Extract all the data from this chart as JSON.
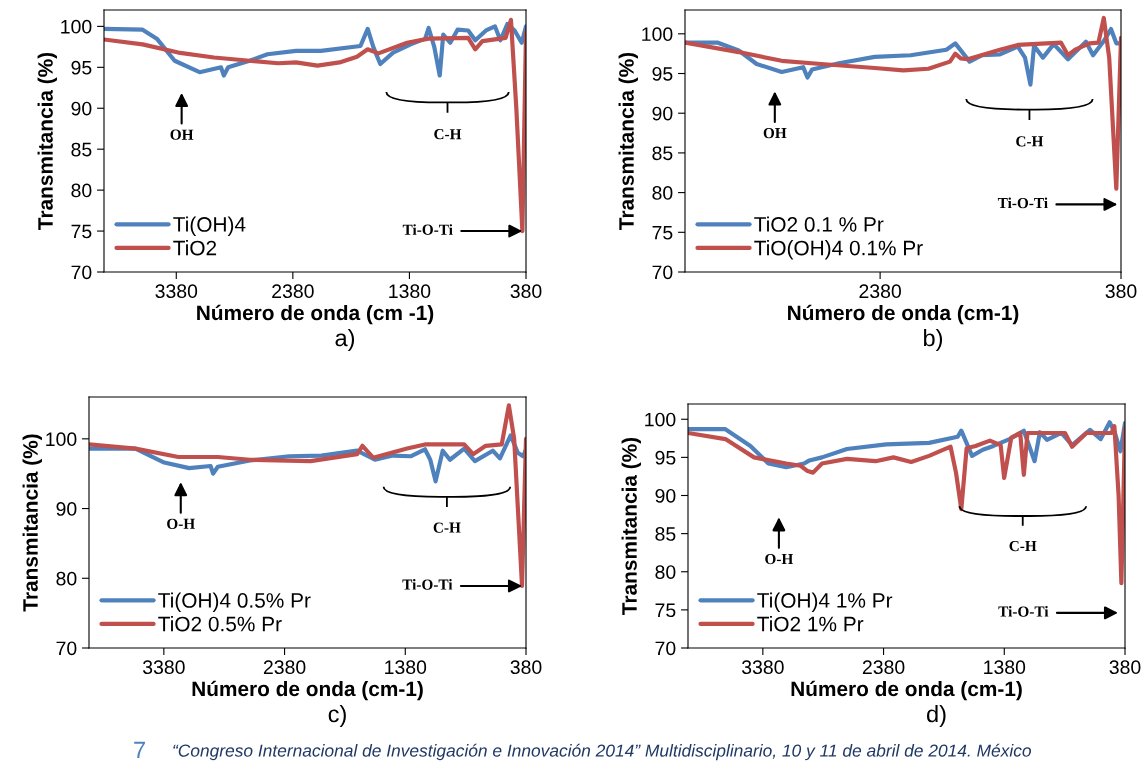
{
  "chart_data": [
    {
      "type": "line",
      "xlabel": "Número de onda (cm -1)",
      "ylabel": "Transmitancia (%)",
      "xlim": [
        4000,
        380
      ],
      "xticks": [
        3380,
        2380,
        1380,
        380
      ],
      "ylim": [
        70,
        102
      ],
      "yticks": [
        70,
        75,
        80,
        85,
        90,
        95,
        100
      ],
      "legend": "bottom left",
      "series": [
        {
          "name": "Ti(OH)4",
          "color": "#4f81bd",
          "x": [
            4000,
            3669,
            3547,
            3394,
            3180,
            2996,
            2972,
            2935,
            2751,
            2598,
            2353,
            2139,
            1800,
            1738,
            1690,
            1630,
            1520,
            1370,
            1245,
            1215,
            1167,
            1120,
            1090,
            1030,
            967,
            876,
            815,
            723,
            646,
            600,
            539,
            478,
            417,
            380
          ],
          "values": [
            99.7,
            99.6,
            98.5,
            95.8,
            94.4,
            95.0,
            94.0,
            95.0,
            95.8,
            96.6,
            97.0,
            97.0,
            97.6,
            99.7,
            97.5,
            95.4,
            96.8,
            97.8,
            98.5,
            99.8,
            97.5,
            94.0,
            99.0,
            98.0,
            99.6,
            99.5,
            98.3,
            99.5,
            100.0,
            98.3,
            100.3,
            99.5,
            98.0,
            100.0
          ]
        },
        {
          "name": "TiO2",
          "color": "#c0504d",
          "x": [
            4000,
            3669,
            3363,
            3057,
            2751,
            2506,
            2353,
            2169,
            1980,
            1830,
            1738,
            1646,
            1400,
            1215,
            876,
            815,
            754,
            555,
            509,
            463,
            411,
            380
          ],
          "values": [
            98.4,
            97.8,
            96.8,
            96.2,
            95.8,
            95.5,
            95.6,
            95.2,
            95.6,
            96.3,
            97.2,
            96.7,
            98.0,
            98.5,
            98.6,
            97.2,
            98.2,
            98.6,
            100.8,
            90,
            75.0,
            99.3
          ]
        }
      ],
      "annotations": [
        "OH",
        "C-H",
        {
          "text": "Ti-O-Ti",
          "x": 411,
          "y": 75.0
        },
        "a)"
      ]
    },
    {
      "type": "line",
      "xlabel": "Número de onda (cm-1)",
      "ylabel": "Transmitancia (%)",
      "xlim": [
        4000,
        380
      ],
      "xticks": [
        2380,
        380
      ],
      "ylim": [
        70,
        103
      ],
      "yticks": [
        70,
        75,
        80,
        85,
        90,
        95,
        100
      ],
      "legend": "bottom left",
      "series": [
        {
          "name": "TiO2 0.1 % Pr",
          "color": "#4f81bd",
          "x": [
            4000,
            3732,
            3554,
            3405,
            3197,
            3019,
            2983,
            2945,
            2722,
            2425,
            2127,
            1830,
            1756,
            1637,
            1533,
            1385,
            1236,
            1177,
            1132,
            1102,
            1028,
            939,
            820,
            671,
            612,
            523,
            463,
            419,
            380
          ],
          "values": [
            98.9,
            98.9,
            97.9,
            96.2,
            95.2,
            95.8,
            94.5,
            95.5,
            96.3,
            97.1,
            97.3,
            98.0,
            98.8,
            96.5,
            97.3,
            97.4,
            98.4,
            97.0,
            93.6,
            98.5,
            97.0,
            98.7,
            96.8,
            99.0,
            97.3,
            99.1,
            100.6,
            98.8,
            98.8
          ]
        },
        {
          "name": "TiO(OH)4 0.1% Pr",
          "color": "#c0504d",
          "x": [
            4000,
            3554,
            3197,
            2871,
            2425,
            2187,
            1979,
            1800,
            1756,
            1711,
            1652,
            1385,
            1236,
            879,
            820,
            760,
            642,
            567,
            523,
            478,
            419,
            380
          ],
          "values": [
            98.9,
            97.7,
            96.6,
            96.2,
            95.7,
            95.4,
            95.6,
            96.5,
            97.5,
            96.9,
            96.8,
            98.0,
            98.6,
            98.9,
            97.3,
            98.0,
            98.8,
            98.9,
            102.0,
            97,
            80.5,
            99.5
          ]
        }
      ],
      "annotations": [
        "OH",
        "C-H",
        "Ti-O-Ti",
        "b)"
      ]
    },
    {
      "type": "line",
      "xlabel": "Número de onda (cm-1)",
      "ylabel": "Transmitancia (%)",
      "xlim": [
        4000,
        380
      ],
      "xticks": [
        3380,
        2380,
        1380,
        380
      ],
      "ylim": [
        70,
        106
      ],
      "yticks": [
        70,
        80,
        90,
        100
      ],
      "legend": "bottom left",
      "series": [
        {
          "name": "Ti(OH)4 0.5% Pr",
          "color": "#4f81bd",
          "x": [
            4000,
            3615,
            3377,
            3170,
            2993,
            2972,
            2933,
            2667,
            2341,
            2075,
            1779,
            1631,
            1484,
            1336,
            1217,
            1173,
            1129,
            1070,
            1010,
            892,
            803,
            655,
            596,
            507,
            448,
            404,
            380
          ],
          "values": [
            98.6,
            98.6,
            96.6,
            95.8,
            96.1,
            95.0,
            96.0,
            96.9,
            97.5,
            97.6,
            98.3,
            97.0,
            97.6,
            97.5,
            98.5,
            97.0,
            93.9,
            98.3,
            97.0,
            98.6,
            96.8,
            98.3,
            97.2,
            100.5,
            98.0,
            97.5,
            98.5
          ]
        },
        {
          "name": "TiO2 0.5% Pr",
          "color": "#c0504d",
          "x": [
            4000,
            3615,
            3259,
            2933,
            2667,
            2164,
            1779,
            1735,
            1646,
            1365,
            1217,
            892,
            818,
            714,
            581,
            522,
            478,
            413,
            380
          ],
          "values": [
            99.2,
            98.6,
            97.4,
            97.4,
            97.0,
            96.8,
            97.8,
            99.0,
            97.3,
            98.6,
            99.2,
            99.2,
            97.8,
            99.0,
            99.2,
            104.8,
            100,
            78.9,
            100
          ]
        }
      ],
      "annotations": [
        "O-H",
        "C-H",
        {
          "text": "Ti-O-Ti",
          "x": 413,
          "y": 78.9
        },
        "c)"
      ]
    },
    {
      "type": "line",
      "xlabel": "Número de onda (cm-1)",
      "ylabel": "Transmitancia (%)",
      "xlim": [
        4000,
        380
      ],
      "xticks": [
        3380,
        2380,
        1380,
        380
      ],
      "ylim": [
        70,
        102
      ],
      "yticks": [
        70,
        75,
        80,
        85,
        90,
        95,
        100
      ],
      "legend": "bottom left",
      "series": [
        {
          "name": "Ti(OH)4 1% Pr",
          "color": "#4f81bd",
          "x": [
            4000,
            3690,
            3483,
            3334,
            3186,
            3038,
            2994,
            2890,
            2683,
            2358,
            2003,
            1766,
            1736,
            1647,
            1558,
            1470,
            1322,
            1218,
            1129,
            1085,
            1026,
            907,
            818,
            670,
            581,
            507,
            463,
            418,
            380
          ],
          "values": [
            98.7,
            98.7,
            96.5,
            94.2,
            93.7,
            94.2,
            94.6,
            95,
            96.1,
            96.7,
            96.9,
            97.7,
            98.5,
            95.2,
            96,
            96.5,
            97.5,
            98.5,
            94.5,
            98.3,
            97.3,
            98.2,
            96.6,
            98.6,
            97.4,
            99.6,
            98.2,
            95.8,
            99.5
          ]
        },
        {
          "name": "TiO2 1% Pr",
          "color": "#c0504d",
          "x": [
            4000,
            3690,
            3453,
            3186,
            3068,
            3009,
            2964,
            2890,
            2683,
            2446,
            2298,
            2151,
            2003,
            1825,
            1780,
            1736,
            1692,
            1618,
            1499,
            1410,
            1381,
            1322,
            1248,
            1218,
            1188,
            877,
            818,
            700,
            492,
            468,
            433,
            410,
            380
          ],
          "values": [
            98.2,
            97.4,
            95.0,
            94.2,
            93.9,
            93.2,
            93.0,
            94.2,
            94.8,
            94.5,
            95,
            94.4,
            95.2,
            96.4,
            93,
            88.2,
            96.2,
            96.5,
            97.2,
            96.6,
            92.3,
            97.6,
            98.2,
            92.7,
            98.2,
            98.2,
            96.4,
            98.2,
            98.2,
            99.1,
            90,
            78.5,
            98.8
          ]
        }
      ],
      "annotations": [
        "O-H",
        "C-H",
        "Ti-O-Ti",
        "d)"
      ]
    },
    {
      "type": "other",
      "annotations": [
        "7",
        "“Congreso Internacional de Investigación e Innovación 2014” Multidisciplinario, 10 y 11 de abril de 2014. México"
      ]
    }
  ]
}
